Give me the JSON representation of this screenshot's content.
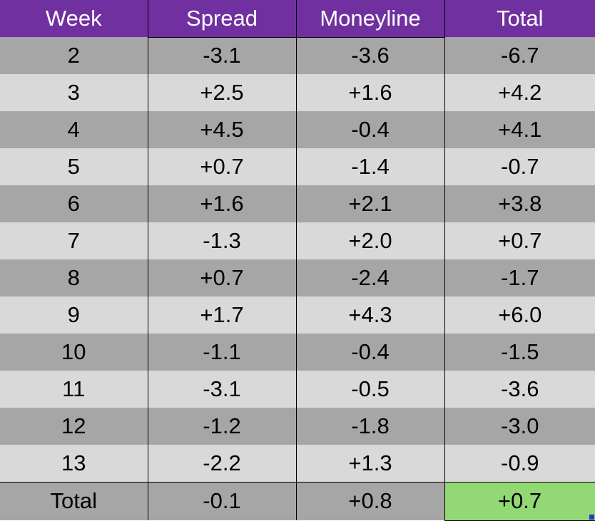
{
  "headers": [
    "Week",
    "Spread",
    "Moneyline",
    "Total"
  ],
  "rows": [
    [
      "2",
      "-3.1",
      "-3.6",
      "-6.7"
    ],
    [
      "3",
      "+2.5",
      "+1.6",
      "+4.2"
    ],
    [
      "4",
      "+4.5",
      "-0.4",
      "+4.1"
    ],
    [
      "5",
      "+0.7",
      "-1.4",
      "-0.7"
    ],
    [
      "6",
      "+1.6",
      "+2.1",
      "+3.8"
    ],
    [
      "7",
      "-1.3",
      "+2.0",
      "+0.7"
    ],
    [
      "8",
      "+0.7",
      "-2.4",
      "-1.7"
    ],
    [
      "9",
      "+1.7",
      "+4.3",
      "+6.0"
    ],
    [
      "10",
      "-1.1",
      "-0.4",
      "-1.5"
    ],
    [
      "11",
      "-3.1",
      "-0.5",
      "-3.6"
    ],
    [
      "12",
      "-1.2",
      "-1.8",
      "-3.0"
    ],
    [
      "13",
      "-2.2",
      "+1.3",
      "-0.9"
    ]
  ],
  "totals": [
    "Total",
    "-0.1",
    "+0.8",
    "+0.7"
  ],
  "colors": {
    "header_bg": "#7030a0",
    "row_dark": "#a6a6a6",
    "row_light": "#d9d9d9",
    "selected_cell": "#92d874"
  }
}
